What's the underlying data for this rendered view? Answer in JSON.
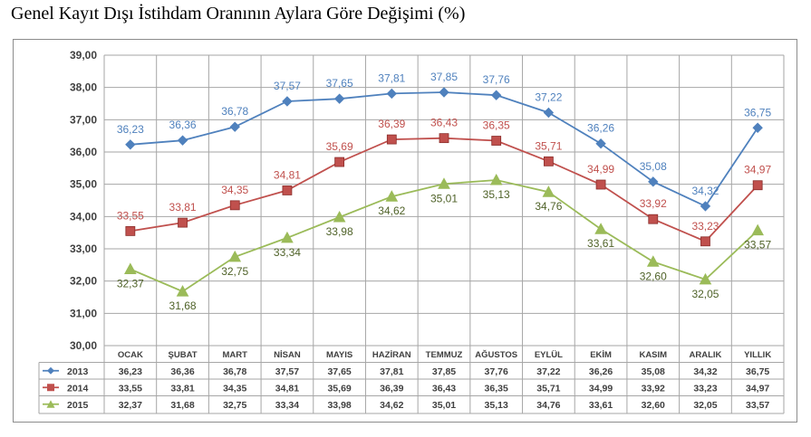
{
  "title": "Genel Kayıt Dışı İstihdam Oranının Aylara Göre Değişimi (%)",
  "chart_data": {
    "type": "line",
    "title": "Genel Kayıt Dışı İstihdam Oranının Aylara Göre Değişimi (%)",
    "xlabel": "",
    "ylabel": "",
    "ylim": [
      30,
      39
    ],
    "yticks": [
      "30,00",
      "31,00",
      "32,00",
      "33,00",
      "34,00",
      "35,00",
      "36,00",
      "37,00",
      "38,00",
      "39,00"
    ],
    "grid": true,
    "legend": "data-table",
    "categories": [
      "OCAK",
      "ŞUBAT",
      "MART",
      "NİSAN",
      "MAYIS",
      "HAZİRAN",
      "TEMMUZ",
      "AĞUSTOS",
      "EYLÜL",
      "EKİM",
      "KASIM",
      "ARALIK",
      "YILLIK"
    ],
    "series": [
      {
        "name": "2013",
        "color": "#4F81BD",
        "marker": "diamond",
        "values": [
          36.23,
          36.36,
          36.78,
          37.57,
          37.65,
          37.81,
          37.85,
          37.76,
          37.22,
          36.26,
          35.08,
          34.32,
          36.75
        ],
        "labels": [
          "36,23",
          "36,36",
          "36,78",
          "37,57",
          "37,65",
          "37,81",
          "37,85",
          "37,76",
          "37,22",
          "36,26",
          "35,08",
          "34,32",
          "36,75"
        ]
      },
      {
        "name": "2014",
        "color": "#C0504D",
        "marker": "square",
        "values": [
          33.55,
          33.81,
          34.35,
          34.81,
          35.69,
          36.39,
          36.43,
          36.35,
          35.71,
          34.99,
          33.92,
          33.23,
          34.97
        ],
        "labels": [
          "33,55",
          "33,81",
          "34,35",
          "34,81",
          "35,69",
          "36,39",
          "36,43",
          "36,35",
          "35,71",
          "34,99",
          "33,92",
          "33,23",
          "34,97"
        ]
      },
      {
        "name": "2015",
        "color": "#9BBB59",
        "marker": "triangle",
        "values": [
          32.37,
          31.68,
          32.75,
          33.34,
          33.98,
          34.62,
          35.01,
          35.13,
          34.76,
          33.61,
          32.6,
          32.05,
          33.57
        ],
        "labels": [
          "32,37",
          "31,68",
          "32,75",
          "33,34",
          "33,98",
          "34,62",
          "35,01",
          "35,13",
          "34,76",
          "33,61",
          "32,60",
          "32,05",
          "33,57"
        ]
      }
    ]
  }
}
